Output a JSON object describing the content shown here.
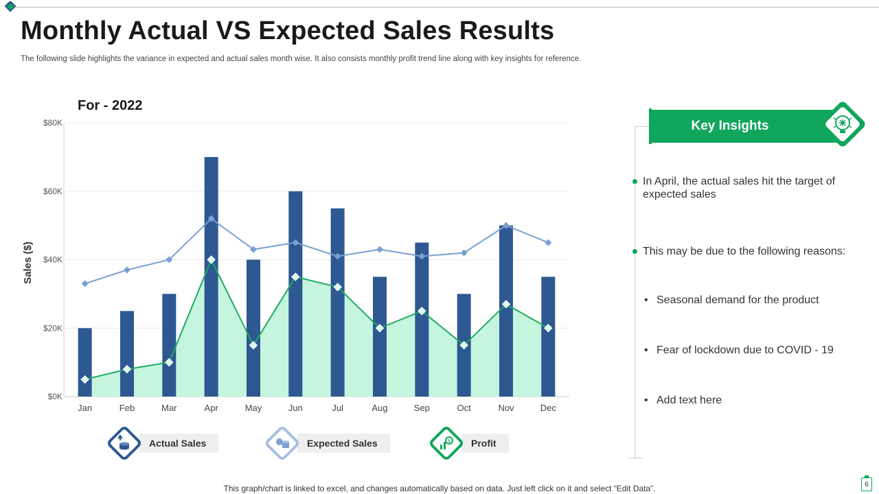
{
  "page": {
    "title": "Monthly Actual VS Expected Sales Results",
    "subtitle": "The following slide highlights the variance in expected and actual sales month wise. It also consists monthly profit trend line along with key insights for reference.",
    "footer": "This graph/chart is linked to excel,  and changes automatically based on data. Just left click on it and select “Edit Data”.",
    "page_number": "6"
  },
  "colors": {
    "actual": "#2e5891",
    "expected": "#7aa0d2",
    "profit_line": "#1faa60",
    "profit_fill": "#c6f5df",
    "accent": "#10a65c"
  },
  "chart_data": {
    "type": "bar",
    "title": "For - 2022",
    "ylabel": "Sales ($)",
    "xlabel": "",
    "ylim": [
      0,
      80000
    ],
    "yticks": [
      {
        "value": 0,
        "label": "$0K"
      },
      {
        "value": 20000,
        "label": "$20K"
      },
      {
        "value": 40000,
        "label": "$40K"
      },
      {
        "value": 60000,
        "label": "$60K"
      },
      {
        "value": 80000,
        "label": "$80K"
      }
    ],
    "categories": [
      "Jan",
      "Feb",
      "Mar",
      "Apr",
      "May",
      "Jun",
      "Jul",
      "Aug",
      "Sep",
      "Oct",
      "Nov",
      "Dec"
    ],
    "series": [
      {
        "name": "Actual Sales",
        "kind": "bar",
        "values": [
          20000,
          25000,
          30000,
          70000,
          40000,
          60000,
          55000,
          35000,
          45000,
          30000,
          50000,
          35000
        ]
      },
      {
        "name": "Expected Sales",
        "kind": "line",
        "values": [
          33000,
          37000,
          40000,
          52000,
          43000,
          45000,
          41000,
          43000,
          41000,
          42000,
          50000,
          45000
        ]
      },
      {
        "name": "Profit",
        "kind": "area",
        "values": [
          5000,
          8000,
          10000,
          40000,
          15000,
          35000,
          32000,
          20000,
          25000,
          15000,
          27000,
          20000
        ]
      }
    ],
    "grid": true,
    "legend_position": "bottom"
  },
  "legend": [
    {
      "label": "Actual Sales",
      "icon": "coins-upload-icon"
    },
    {
      "label": "Expected Sales",
      "icon": "coins-stack-icon"
    },
    {
      "label": "Profit",
      "icon": "profit-chart-icon"
    }
  ],
  "insights": {
    "heading": "Key Insights",
    "icon": "lightbulb-brain-icon",
    "points": [
      "In April, the actual sales hit the target of expected sales",
      "This may be due to the following reasons:"
    ],
    "reasons": [
      "Seasonal demand for the product",
      "Fear of lockdown due to COVID - 19",
      "Add text here"
    ]
  }
}
